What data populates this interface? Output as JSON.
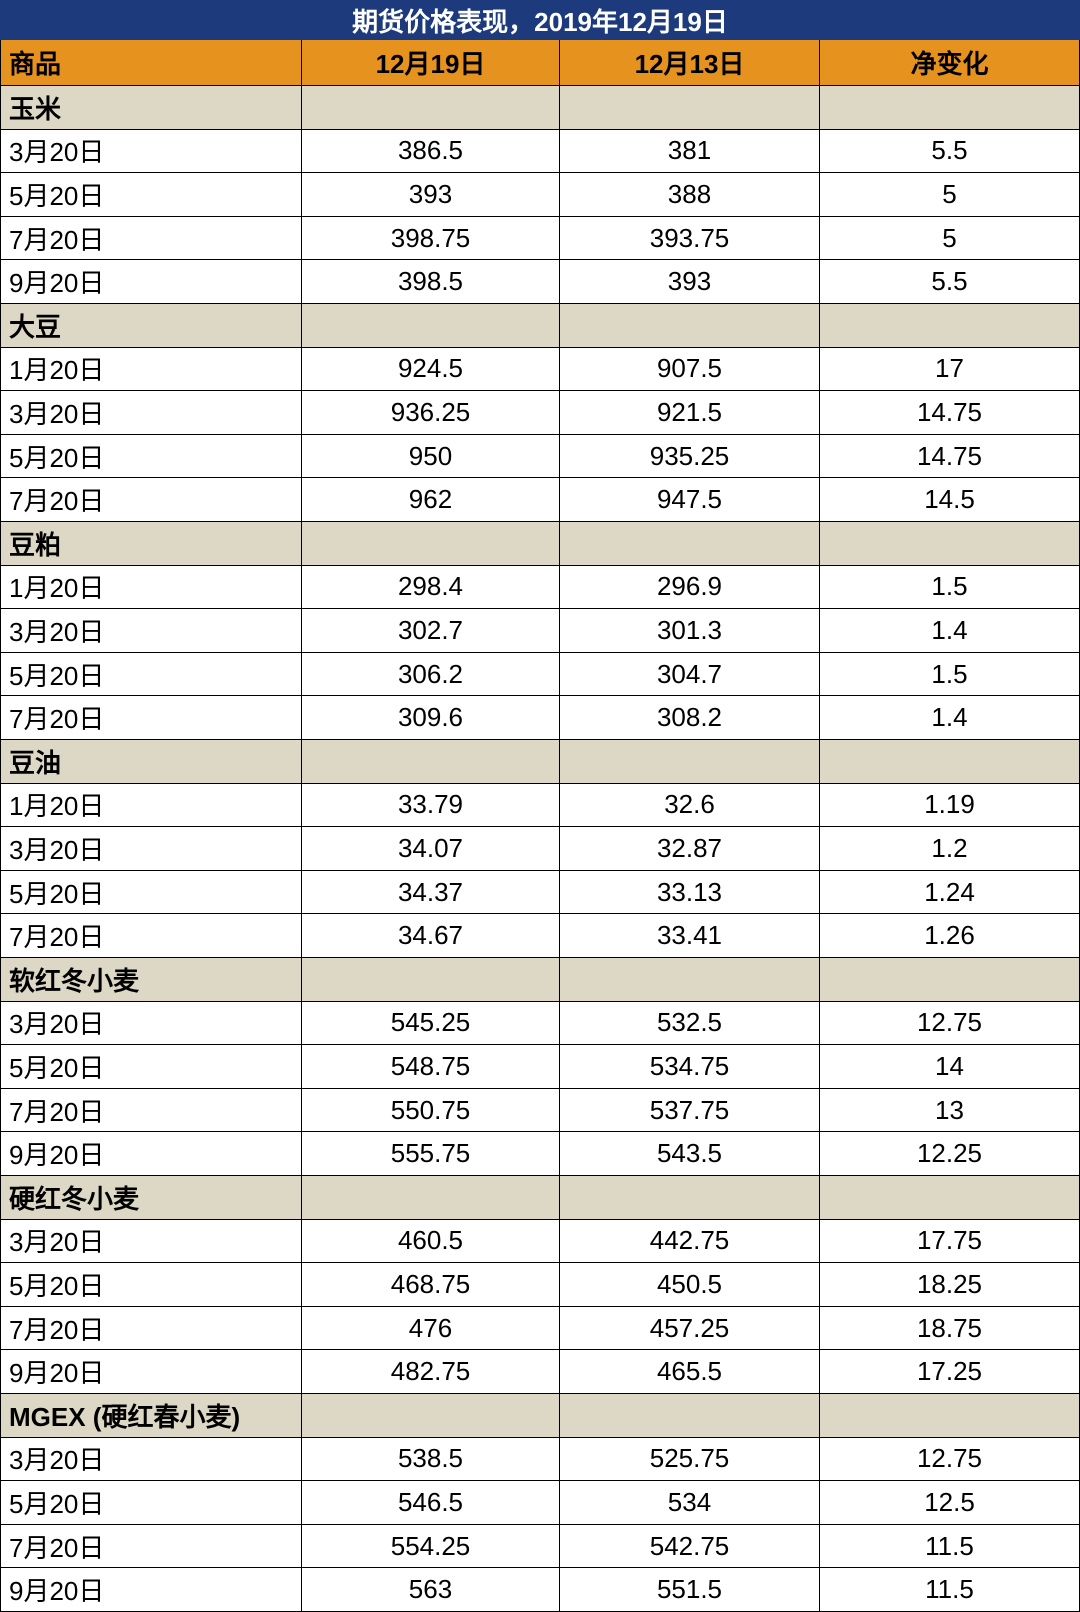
{
  "title": "期货价格表现，2019年12月19日",
  "header": [
    "商品",
    "12月19日",
    "12月13日",
    "净变化"
  ],
  "groups": [
    {
      "name": "玉米",
      "rows": [
        [
          "3月20日",
          "386.5",
          "381",
          "5.5"
        ],
        [
          "5月20日",
          "393",
          "388",
          "5"
        ],
        [
          "7月20日",
          "398.75",
          "393.75",
          "5"
        ],
        [
          "9月20日",
          "398.5",
          "393",
          "5.5"
        ]
      ]
    },
    {
      "name": "大豆",
      "rows": [
        [
          "1月20日",
          "924.5",
          "907.5",
          "17"
        ],
        [
          "3月20日",
          "936.25",
          "921.5",
          "14.75"
        ],
        [
          "5月20日",
          "950",
          "935.25",
          "14.75"
        ],
        [
          "7月20日",
          "962",
          "947.5",
          "14.5"
        ]
      ]
    },
    {
      "name": "豆粕",
      "rows": [
        [
          "1月20日",
          "298.4",
          "296.9",
          "1.5"
        ],
        [
          "3月20日",
          "302.7",
          "301.3",
          "1.4"
        ],
        [
          "5月20日",
          "306.2",
          "304.7",
          "1.5"
        ],
        [
          "7月20日",
          "309.6",
          "308.2",
          "1.4"
        ]
      ]
    },
    {
      "name": "豆油",
      "rows": [
        [
          "1月20日",
          "33.79",
          "32.6",
          "1.19"
        ],
        [
          "3月20日",
          "34.07",
          "32.87",
          "1.2"
        ],
        [
          "5月20日",
          "34.37",
          "33.13",
          "1.24"
        ],
        [
          "7月20日",
          "34.67",
          "33.41",
          "1.26"
        ]
      ]
    },
    {
      "name": "软红冬小麦",
      "rows": [
        [
          "3月20日",
          "545.25",
          "532.5",
          "12.75"
        ],
        [
          "5月20日",
          "548.75",
          "534.75",
          "14"
        ],
        [
          "7月20日",
          "550.75",
          "537.75",
          "13"
        ],
        [
          "9月20日",
          "555.75",
          "543.5",
          "12.25"
        ]
      ]
    },
    {
      "name": "硬红冬小麦",
      "rows": [
        [
          "3月20日",
          "460.5",
          "442.75",
          "17.75"
        ],
        [
          "5月20日",
          "468.75",
          "450.5",
          "18.25"
        ],
        [
          "7月20日",
          "476",
          "457.25",
          "18.75"
        ],
        [
          "9月20日",
          "482.75",
          "465.5",
          "17.25"
        ]
      ]
    },
    {
      "name": "MGEX (硬红春小麦)",
      "rows": [
        [
          "3月20日",
          "538.5",
          "525.75",
          "12.75"
        ],
        [
          "5月20日",
          "546.5",
          "534",
          "12.5"
        ],
        [
          "7月20日",
          "554.25",
          "542.75",
          "11.5"
        ],
        [
          "9月20日",
          "563",
          "551.5",
          "11.5"
        ]
      ]
    }
  ]
}
